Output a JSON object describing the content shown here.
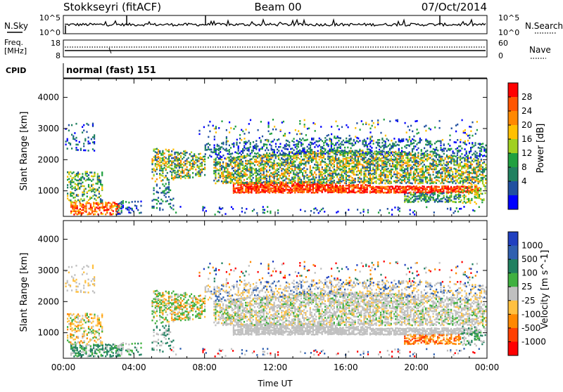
{
  "header": {
    "station": "Stokkseyri (fitACF)",
    "beam": "Beam 00",
    "date": "07/Oct/2014"
  },
  "noise_panel": {
    "left_label": "N.Sky",
    "right_label": "N.Search",
    "left_ticks": [
      "10^5",
      "10^0"
    ],
    "right_ticks": [
      "10^5",
      "10^0"
    ]
  },
  "freq_panel": {
    "left_label_line1": "Freq.",
    "left_label_line2": "[MHz]",
    "right_label": "Nave",
    "left_ticks": [
      "18",
      "8"
    ],
    "right_ticks": [
      "60",
      "0"
    ]
  },
  "cpid": {
    "label": "CPID",
    "value": "normal (fast) 151"
  },
  "chart_data": [
    {
      "type": "heatmap",
      "title": "",
      "ylabel": "Slant Range [km]",
      "xlabel": "",
      "xlim_hours": [
        0,
        24
      ],
      "ylim_km": [
        180,
        4600
      ],
      "yticks": [
        "1000",
        "2000",
        "3000",
        "4000"
      ],
      "colorbar": {
        "label": "Power [dB]",
        "ticks": [
          "28",
          "24",
          "20",
          "16",
          "12",
          "8",
          "4"
        ],
        "colors": [
          "#ff0000",
          "#ff5500",
          "#ff8800",
          "#ffc000",
          "#a0d020",
          "#20a040",
          "#208060",
          "#2050a0",
          "#0000ff"
        ]
      }
    },
    {
      "type": "heatmap",
      "title": "",
      "ylabel": "Slant Range [km]",
      "xlabel": "Time UT",
      "xlim_hours": [
        0,
        24
      ],
      "ylim_km": [
        180,
        4600
      ],
      "yticks": [
        "1000",
        "2000",
        "3000",
        "4000"
      ],
      "xticks": [
        "00:00",
        "04:00",
        "08:00",
        "12:00",
        "16:00",
        "20:00",
        "00:00"
      ],
      "colorbar": {
        "label": "Velocity [m s^-1]",
        "ticks": [
          "1000",
          "500",
          "100",
          "25",
          "-25",
          "-100",
          "-500",
          "-1000"
        ],
        "colors": [
          "#2040c0",
          "#3060b0",
          "#208060",
          "#40b040",
          "#c0c0c0",
          "#ffc040",
          "#ff8800",
          "#ff4000",
          "#ff0000"
        ]
      }
    }
  ],
  "colors": {
    "ground_scatter": "#c0c0c0",
    "axis": "#000000"
  }
}
